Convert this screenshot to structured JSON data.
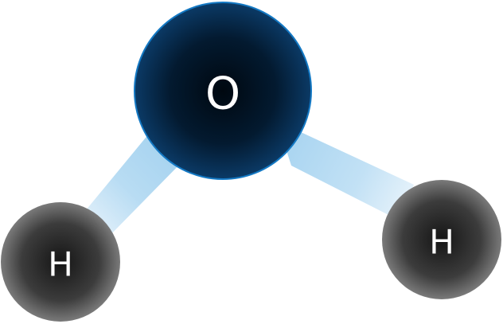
{
  "molecule": {
    "atoms": [
      {
        "id": "oxygen",
        "label": "O"
      },
      {
        "id": "hydrogen-left",
        "label": "H"
      },
      {
        "id": "hydrogen-right",
        "label": "H"
      }
    ],
    "bonds": [
      {
        "from": "oxygen",
        "to": "hydrogen-left"
      },
      {
        "from": "oxygen",
        "to": "hydrogen-right"
      }
    ],
    "colors": {
      "oxygen_core": "#000810",
      "oxygen_edge": "#0b3a66",
      "oxygen_stroke": "#1479c4",
      "hydrogen_core": "#151515",
      "hydrogen_edge": "#7a7a7a",
      "bond_near": "#a9d4f0",
      "bond_far": "#e6f2fb"
    }
  }
}
